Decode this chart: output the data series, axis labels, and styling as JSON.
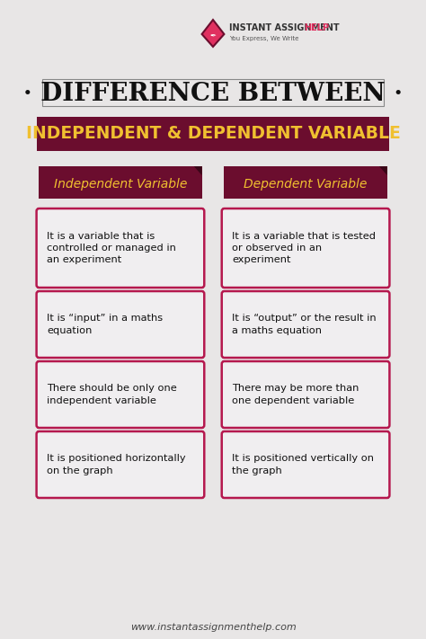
{
  "title_line1": "· DIFFERENCE BETWEEN ·",
  "title_line2": "INDEPENDENT & DEPENDENT VARIABLE",
  "header_left": "Independent Variable",
  "header_right": "Dependent Variable",
  "left_items": [
    "It is a variable that is\ncontrolled or managed in\nan experiment",
    "It is “input” in a maths\nequation",
    "There should be only one\nindependent variable",
    "It is positioned horizontally\non the graph"
  ],
  "right_items": [
    "It is a variable that is tested\nor observed in an\nexperiment",
    "It is “output” or the result in\na maths equation",
    "There may be more than\none dependent variable",
    "It is positioned vertically on\nthe graph"
  ],
  "footer": "www.instantassignmenthelp.com",
  "bg_color": "#e8e6e6",
  "dark_maroon": "#6b0d2e",
  "gold_color": "#d4a017",
  "box_border_color": "#b5184e",
  "box_bg_color": "#f0eef0",
  "title_bg_color": "#6b0d2e",
  "title_text_color": "#f0c030",
  "header_text_color": "#f0c030",
  "logo_color": "#e03060",
  "logo_border": "#6b0d2e"
}
